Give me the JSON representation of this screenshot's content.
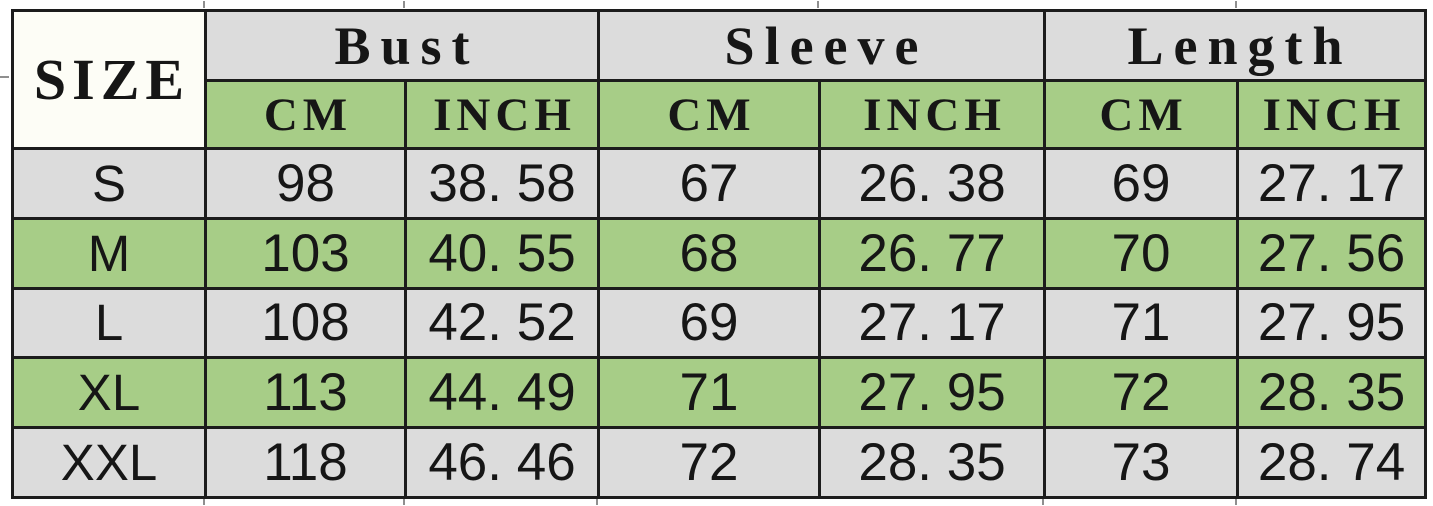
{
  "table": {
    "corner_label": "SIZE",
    "groups": [
      {
        "label": "Bust"
      },
      {
        "label": "Sleeve"
      },
      {
        "label": "Length"
      }
    ],
    "unit_headers": [
      "CM",
      "INCH",
      "CM",
      "INCH",
      "CM",
      "INCH"
    ],
    "rows": [
      {
        "size": "S",
        "shade": "gray",
        "cells": [
          "98",
          "38. 58",
          "67",
          "26. 38",
          "69",
          "27. 17"
        ]
      },
      {
        "size": "M",
        "shade": "green",
        "cells": [
          "103",
          "40. 55",
          "68",
          "26. 77",
          "70",
          "27. 56"
        ]
      },
      {
        "size": "L",
        "shade": "gray",
        "cells": [
          "108",
          "42. 52",
          "69",
          "27. 17",
          "71",
          "27. 95"
        ]
      },
      {
        "size": "XL",
        "shade": "green",
        "cells": [
          "113",
          "44. 49",
          "71",
          "27. 95",
          "72",
          "28. 35"
        ]
      },
      {
        "size": "XXL",
        "shade": "gray",
        "cells": [
          "118",
          "46. 46",
          "72",
          "28. 35",
          "73",
          "28. 74"
        ]
      }
    ],
    "colors": {
      "green": "#a7cd87",
      "gray": "#dcdcdc",
      "corner_white": "#fdfdf6",
      "border": "#1c1c1c"
    }
  },
  "chart_data": {
    "type": "table",
    "columns": [
      "SIZE",
      "Bust CM",
      "Bust INCH",
      "Sleeve CM",
      "Sleeve INCH",
      "Length CM",
      "Length INCH"
    ],
    "rows": [
      [
        "S",
        98,
        38.58,
        67,
        26.38,
        69,
        27.17
      ],
      [
        "M",
        103,
        40.55,
        68,
        26.77,
        70,
        27.56
      ],
      [
        "L",
        108,
        42.52,
        69,
        27.17,
        71,
        27.95
      ],
      [
        "XL",
        113,
        44.49,
        71,
        27.95,
        72,
        28.35
      ],
      [
        "XXL",
        118,
        46.46,
        72,
        28.35,
        73,
        28.74
      ]
    ]
  }
}
